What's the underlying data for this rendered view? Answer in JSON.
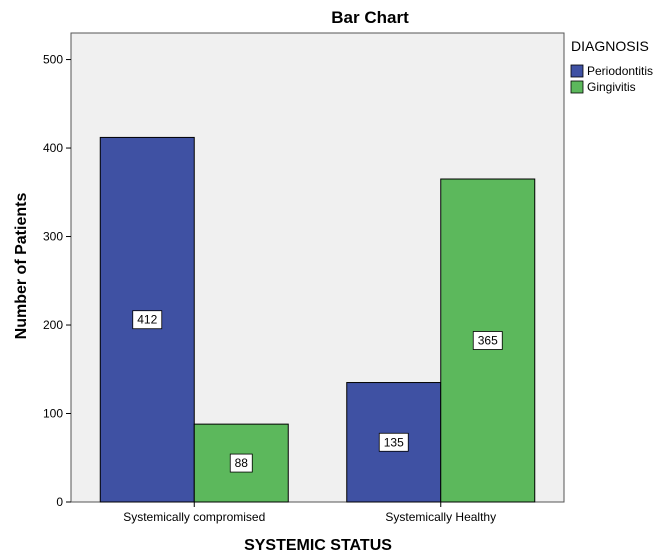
{
  "chart_data": {
    "type": "bar",
    "title": "Bar Chart",
    "xlabel": "SYSTEMIC STATUS",
    "ylabel": "Number of Patients",
    "categories": [
      "Systemically compromised",
      "Systemically Healthy"
    ],
    "series": [
      {
        "name": "Periodontitis",
        "values": [
          412,
          135
        ],
        "color": "#3f51a3"
      },
      {
        "name": "Gingivitis",
        "values": [
          88,
          365
        ],
        "color": "#5cb85c"
      }
    ],
    "ylim": [
      0,
      530
    ],
    "yticks": [
      0,
      100,
      200,
      300,
      400,
      500
    ],
    "grid": false,
    "legend": {
      "title": "DIAGNOSIS",
      "position": "top-right"
    },
    "data_labels": true,
    "plot_background": "#f0f0f0"
  }
}
